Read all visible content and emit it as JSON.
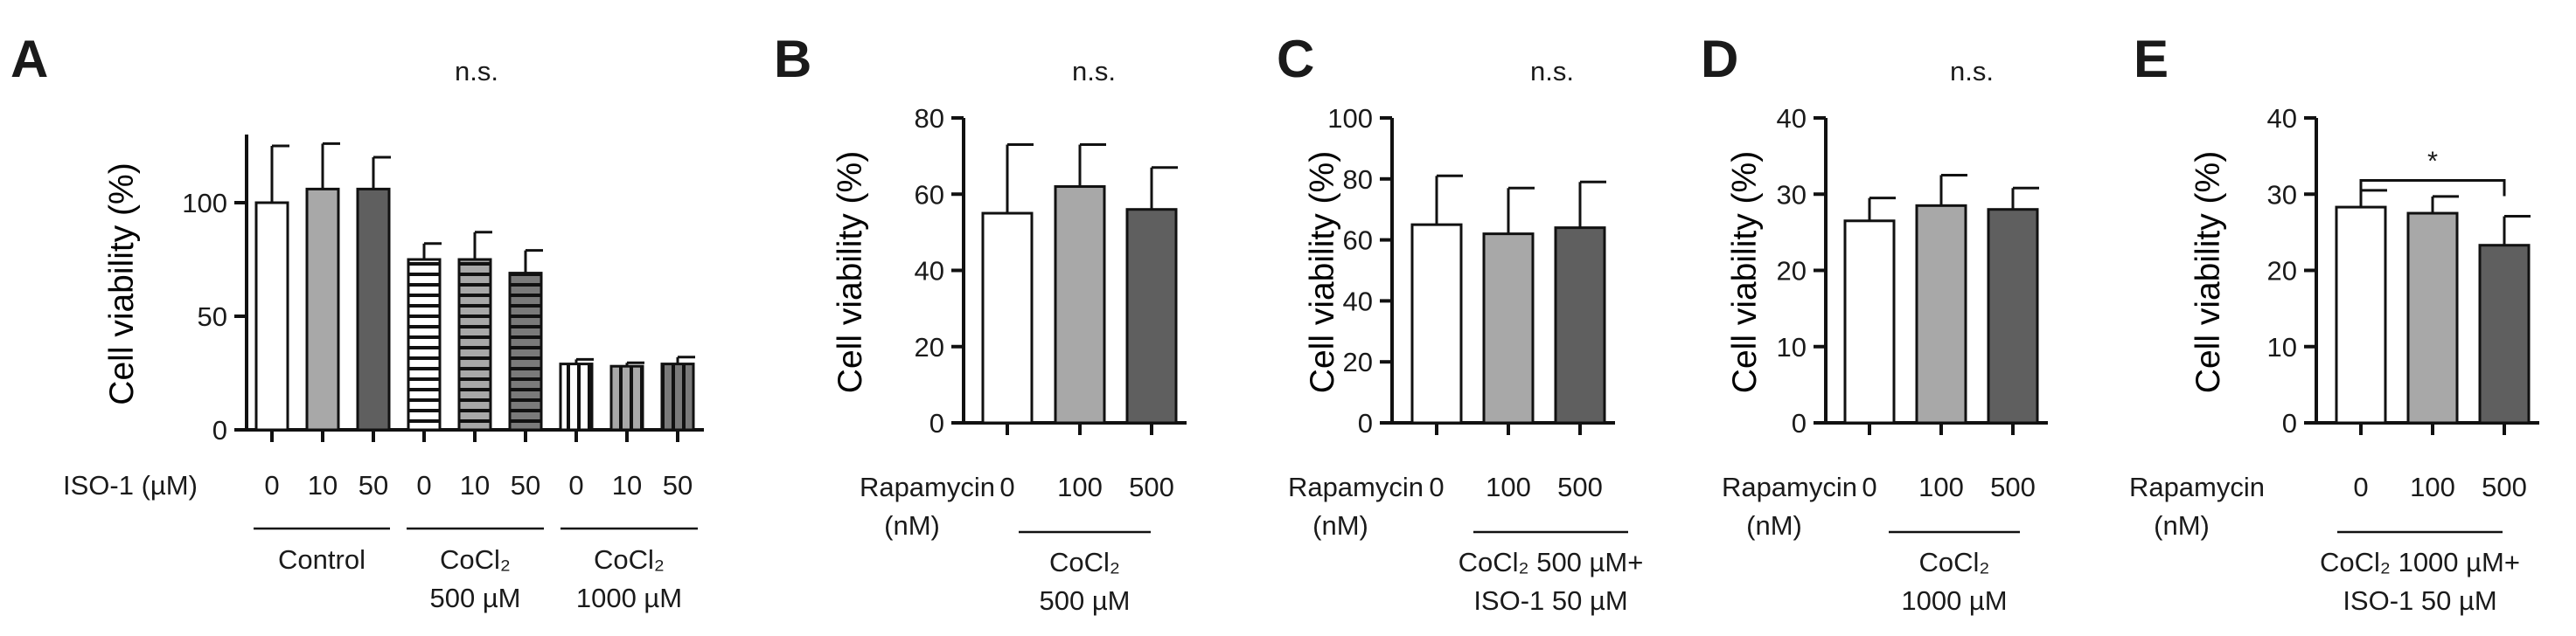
{
  "colors": {
    "white": "#ffffff",
    "light_gray": "#a8a8a8",
    "dark_gray": "#5f5f5f",
    "mid_gray": "#7a7a7a",
    "ink": "#111111"
  },
  "chart_data": [
    {
      "panel": "A",
      "type": "bar",
      "ylabel": "Cell viability  (%)",
      "ylim": [
        0,
        130
      ],
      "yticks": [
        "0",
        "50",
        "100"
      ],
      "significance": "n.s.",
      "row_label": "ISO-1 (µM)",
      "categories": [
        "0",
        "10",
        "50",
        "0",
        "10",
        "50",
        "0",
        "10",
        "50"
      ],
      "values": [
        100,
        106,
        106,
        75,
        75,
        69,
        29,
        28,
        29
      ],
      "errors": [
        25,
        20,
        14,
        7,
        12,
        10,
        2,
        1.5,
        3
      ],
      "fills": [
        "white",
        "light",
        "dark",
        "hstripe-white",
        "hstripe-light",
        "hstripe-dark",
        "vstripe-white",
        "vstripe-light",
        "vstripe-dark"
      ],
      "groups": [
        {
          "lines": [
            "Control"
          ],
          "first": 0,
          "last": 2
        },
        {
          "lines": [
            "CoCl₂",
            "500 µM"
          ],
          "first": 3,
          "last": 5
        },
        {
          "lines": [
            "CoCl₂",
            "1000 µM"
          ],
          "first": 6,
          "last": 8
        }
      ]
    },
    {
      "panel": "B",
      "type": "bar",
      "ylabel": "Cell viability  (%)",
      "ylim": [
        0,
        80
      ],
      "yticks": [
        "0",
        "20",
        "40",
        "60",
        "80"
      ],
      "significance": "n.s.",
      "row_label": [
        "Rapamycin",
        "(nM)"
      ],
      "categories": [
        "0",
        "100",
        "500"
      ],
      "values": [
        55,
        62,
        56
      ],
      "errors": [
        18,
        11,
        11
      ],
      "fills": [
        "white",
        "light",
        "dark"
      ],
      "groups": [
        {
          "lines": [
            "CoCl₂",
            "500 µM"
          ],
          "first": 0,
          "last": 2
        }
      ]
    },
    {
      "panel": "C",
      "type": "bar",
      "ylabel": "Cell viability  (%)",
      "ylim": [
        0,
        100
      ],
      "yticks": [
        "0",
        "20",
        "40",
        "60",
        "80",
        "100"
      ],
      "significance": "n.s.",
      "row_label": [
        "Rapamycin",
        "(nM)"
      ],
      "categories": [
        "0",
        "100",
        "500"
      ],
      "values": [
        65,
        62,
        64
      ],
      "errors": [
        16,
        15,
        15
      ],
      "fills": [
        "white",
        "light",
        "dark"
      ],
      "groups": [
        {
          "lines": [
            "CoCl₂ 500 µM+",
            "ISO-1 50 µM"
          ],
          "first": 0,
          "last": 2
        }
      ]
    },
    {
      "panel": "D",
      "type": "bar",
      "ylabel": "Cell viability  (%)",
      "ylim": [
        0,
        40
      ],
      "yticks": [
        "0",
        "10",
        "20",
        "30",
        "40"
      ],
      "significance": "n.s.",
      "row_label": [
        "Rapamycin",
        "(nM)"
      ],
      "categories": [
        "0",
        "100",
        "500"
      ],
      "values": [
        26.5,
        28.5,
        28
      ],
      "errors": [
        3,
        4,
        2.8
      ],
      "fills": [
        "white",
        "light",
        "dark"
      ],
      "groups": [
        {
          "lines": [
            "CoCl₂",
            "1000 µM"
          ],
          "first": 0,
          "last": 2
        }
      ]
    },
    {
      "panel": "E",
      "type": "bar",
      "ylabel": "Cell viability  (%)",
      "ylim": [
        0,
        40
      ],
      "yticks": [
        "0",
        "10",
        "20",
        "30",
        "40"
      ],
      "significance": "*",
      "sig_bracket": [
        0,
        2
      ],
      "row_label": [
        "Rapamycin",
        "(nM)"
      ],
      "categories": [
        "0",
        "100",
        "500"
      ],
      "values": [
        28.3,
        27.5,
        23.3
      ],
      "errors": [
        2.2,
        2.2,
        3.8
      ],
      "fills": [
        "white",
        "light",
        "dark"
      ],
      "groups": [
        {
          "lines": [
            "CoCl₂ 1000 µM+",
            "ISO-1 50 µM"
          ],
          "first": 0,
          "last": 2
        }
      ]
    }
  ]
}
